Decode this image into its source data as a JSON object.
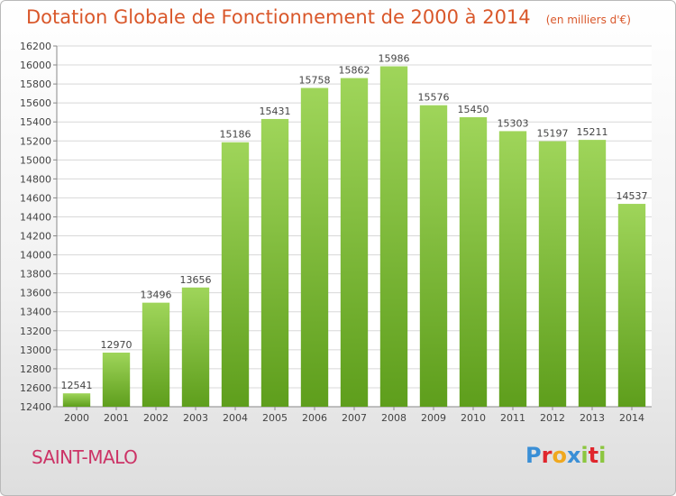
{
  "header": {
    "title": "Dotation Globale de Fonctionnement de 2000 à 2014",
    "unit": "(en milliers d'€)"
  },
  "footer": {
    "city": "SAINT-MALO",
    "logo_letters": [
      "P",
      "r",
      "o",
      "x",
      "i",
      "t",
      "i"
    ],
    "logo_colors": [
      "#3a8fd6",
      "#e0262d",
      "#f0a81e",
      "#3a8fd6",
      "#8cc63f",
      "#e0262d",
      "#8cc63f"
    ]
  },
  "colors": {
    "bar_light": "#9fd55a",
    "bar_dark": "#5e9e1c",
    "grid": "#d8d8d8",
    "plot_bg": "#ffffff"
  },
  "chart_data": {
    "type": "bar",
    "title": "Dotation Globale de Fonctionnement de 2000 à 2014",
    "subtitle": "(en milliers d'€)",
    "categories": [
      "2000",
      "2001",
      "2002",
      "2003",
      "2004",
      "2005",
      "2006",
      "2007",
      "2008",
      "2009",
      "2010",
      "2011",
      "2012",
      "2013",
      "2014"
    ],
    "values": [
      12541,
      12970,
      13496,
      13656,
      15186,
      15431,
      15758,
      15862,
      15986,
      15576,
      15450,
      15303,
      15197,
      15211,
      14537
    ],
    "ylim": [
      12400,
      16200
    ],
    "yticks": [
      12400,
      12600,
      12800,
      13000,
      13200,
      13400,
      13600,
      13800,
      14000,
      14200,
      14400,
      14600,
      14800,
      15000,
      15200,
      15400,
      15600,
      15800,
      16000,
      16200
    ],
    "grid": true,
    "xlabel": "",
    "ylabel": ""
  }
}
